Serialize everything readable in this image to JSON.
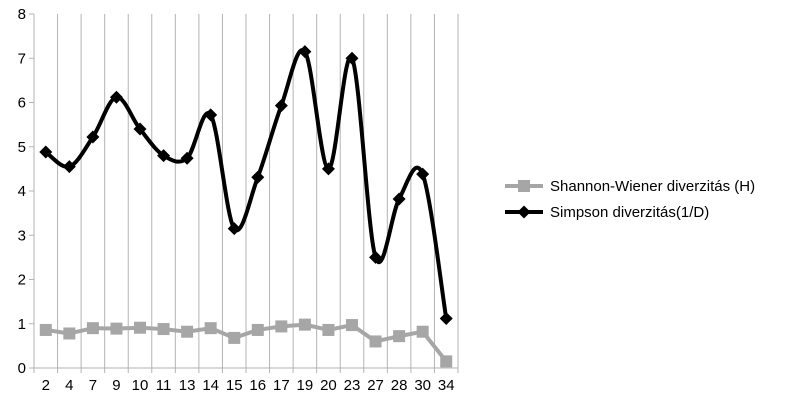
{
  "chart_data": {
    "type": "line",
    "smoothed": true,
    "title": "",
    "xlabel": "",
    "ylabel": "",
    "categories": [
      "2",
      "4",
      "7",
      "9",
      "10",
      "11",
      "13",
      "14",
      "15",
      "16",
      "17",
      "19",
      "20",
      "23",
      "27",
      "28",
      "30",
      "34"
    ],
    "ylim": [
      0,
      8
    ],
    "yticks": [
      0,
      1,
      2,
      3,
      4,
      5,
      6,
      7,
      8
    ],
    "grid": {
      "horizontal": false,
      "vertical": true
    },
    "legend": {
      "position": "right"
    },
    "series": [
      {
        "name": "Shannon-Wiener diverzitás (H)",
        "color": "#a6a6a6",
        "marker": "square",
        "smooth": false,
        "values": [
          0.86,
          0.78,
          0.9,
          0.89,
          0.91,
          0.88,
          0.82,
          0.9,
          0.68,
          0.86,
          0.94,
          0.98,
          0.86,
          0.97,
          0.6,
          0.72,
          0.82,
          0.15
        ]
      },
      {
        "name": "Simpson diverzitás(1/D)",
        "color": "#000000",
        "marker": "diamond",
        "smooth": true,
        "values": [
          4.88,
          4.55,
          5.22,
          6.12,
          5.4,
          4.8,
          4.74,
          5.72,
          3.15,
          4.31,
          5.93,
          7.15,
          4.5,
          7.0,
          2.5,
          3.82,
          4.38,
          1.12
        ]
      }
    ]
  }
}
